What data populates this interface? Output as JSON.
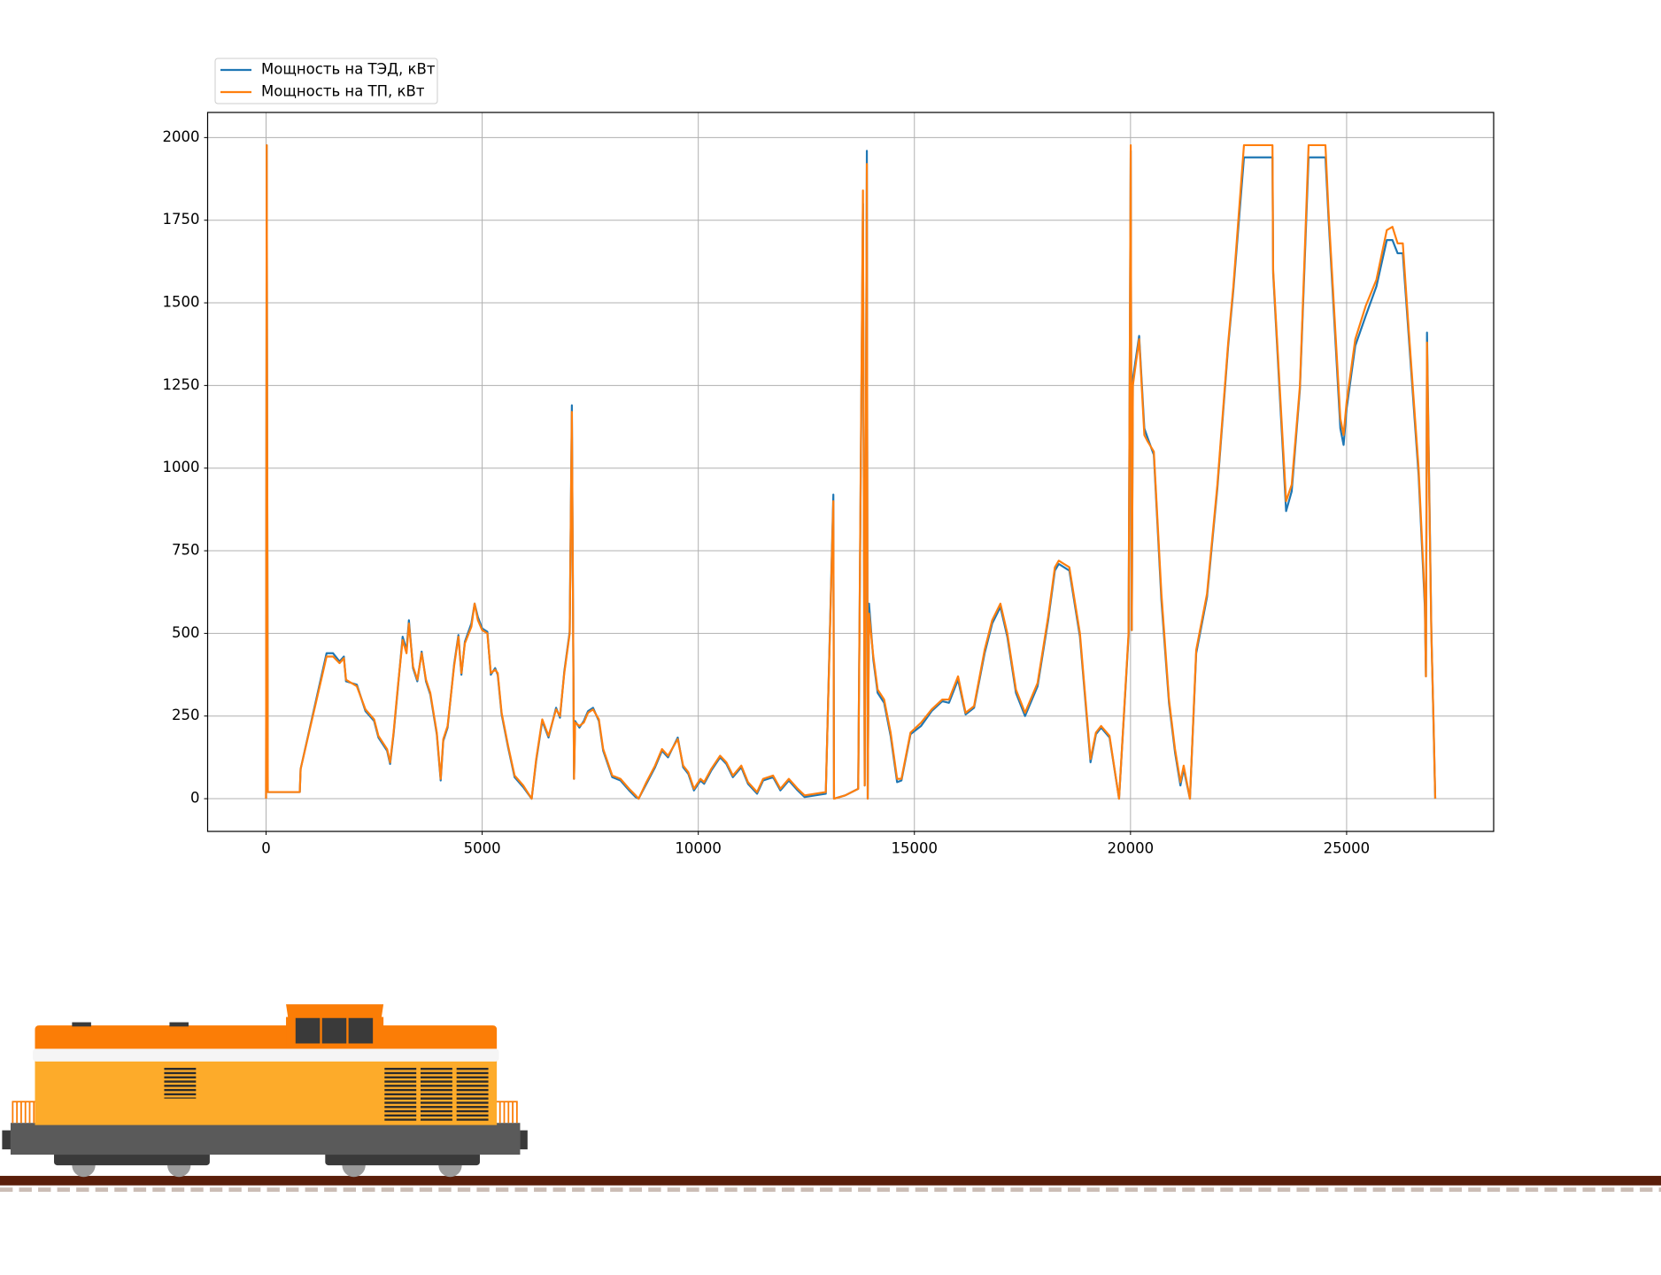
{
  "chart_data": {
    "type": "line",
    "x": [
      0,
      15,
      40,
      780,
      800,
      1400,
      1550,
      1700,
      1800,
      1850,
      2100,
      2300,
      2500,
      2600,
      2800,
      2870,
      2950,
      3050,
      3160,
      3250,
      3305,
      3400,
      3500,
      3600,
      3700,
      3800,
      3950,
      4040,
      4100,
      4200,
      4350,
      4450,
      4520,
      4600,
      4750,
      4825,
      4900,
      5000,
      5120,
      5200,
      5300,
      5360,
      5450,
      5600,
      5750,
      5950,
      6145,
      6250,
      6390,
      6535,
      6710,
      6800,
      6900,
      7025,
      7075,
      7125,
      7150,
      7250,
      7350,
      7450,
      7565,
      7700,
      7800,
      8010,
      8200,
      8400,
      8550,
      8620,
      8800,
      9000,
      9160,
      9300,
      9525,
      9650,
      9770,
      9900,
      10050,
      10135,
      10300,
      10505,
      10650,
      10800,
      10995,
      11150,
      11360,
      11500,
      11730,
      11900,
      12095,
      12300,
      12460,
      12950,
      13125,
      13140,
      13400,
      13700,
      13810,
      13850,
      13900,
      13920,
      13950,
      14050,
      14150,
      14300,
      14450,
      14600,
      14700,
      14910,
      15155,
      15400,
      15645,
      15800,
      16010,
      16185,
      16380,
      16625,
      16800,
      16990,
      17150,
      17350,
      17560,
      17850,
      18095,
      18250,
      18340,
      18585,
      18830,
      19075,
      19200,
      19320,
      19515,
      19735,
      19955,
      20005,
      20030,
      20055,
      20200,
      20320,
      20400,
      20540,
      20715,
      20890,
      21030,
      21155,
      21230,
      21375,
      21520,
      21770,
      22010,
      22260,
      22380,
      22625,
      23285,
      23300,
      23600,
      23730,
      23920,
      24120,
      24510,
      24580,
      24855,
      24930,
      25000,
      25200,
      25440,
      25690,
      25930,
      26060,
      26180,
      26300,
      26420,
      26665,
      26810,
      26835,
      26860,
      26960,
      27010,
      27050
    ],
    "series": [
      {
        "name": "Мощность на ТЭД, кВт",
        "color": "#1f77b4",
        "values": [
          0,
          1977,
          20,
          20,
          90,
          440,
          440,
          415,
          430,
          355,
          345,
          265,
          235,
          185,
          145,
          105,
          195,
          335,
          490,
          450,
          540,
          395,
          355,
          445,
          355,
          315,
          195,
          55,
          175,
          215,
          405,
          495,
          375,
          475,
          530,
          590,
          550,
          515,
          505,
          375,
          395,
          375,
          255,
          155,
          65,
          35,
          0,
          115,
          235,
          185,
          275,
          245,
          385,
          505,
          1190,
          60,
          235,
          215,
          235,
          265,
          275,
          235,
          145,
          65,
          55,
          25,
          5,
          0,
          45,
          95,
          145,
          125,
          185,
          95,
          75,
          25,
          55,
          45,
          85,
          125,
          105,
          65,
          95,
          45,
          15,
          55,
          65,
          25,
          55,
          25,
          5,
          15,
          920,
          0,
          10,
          30,
          1800,
          40,
          1960,
          0,
          590,
          420,
          320,
          290,
          190,
          50,
          55,
          195,
          220,
          265,
          295,
          290,
          360,
          255,
          275,
          440,
          530,
          580,
          490,
          320,
          250,
          340,
          540,
          690,
          710,
          690,
          490,
          110,
          195,
          215,
          185,
          0,
          490,
          1960,
          510,
          1270,
          1400,
          1120,
          1090,
          1040,
          600,
          290,
          140,
          40,
          90,
          0,
          440,
          610,
          940,
          1370,
          1540,
          1940,
          1940,
          1590,
          870,
          930,
          1240,
          1940,
          1940,
          1760,
          1120,
          1070,
          1180,
          1370,
          1460,
          1550,
          1690,
          1690,
          1650,
          1650,
          1430,
          980,
          580,
          370,
          1410,
          510,
          230,
          0
        ]
      },
      {
        "name": "Мощность на ТП, кВт",
        "color": "#ff7f0e",
        "values": [
          0,
          1977,
          20,
          20,
          90,
          430,
          430,
          410,
          425,
          360,
          340,
          270,
          240,
          190,
          150,
          110,
          200,
          340,
          480,
          440,
          530,
          400,
          360,
          440,
          360,
          320,
          200,
          60,
          180,
          220,
          400,
          490,
          380,
          470,
          520,
          590,
          540,
          510,
          500,
          380,
          390,
          380,
          260,
          160,
          70,
          40,
          0,
          120,
          240,
          190,
          270,
          250,
          380,
          500,
          1170,
          60,
          230,
          220,
          230,
          260,
          270,
          240,
          150,
          70,
          60,
          30,
          10,
          0,
          50,
          100,
          150,
          130,
          180,
          100,
          80,
          30,
          60,
          50,
          90,
          130,
          110,
          70,
          100,
          50,
          20,
          60,
          70,
          30,
          60,
          30,
          10,
          20,
          900,
          0,
          10,
          30,
          1840,
          40,
          1920,
          0,
          560,
          430,
          330,
          300,
          200,
          60,
          60,
          200,
          230,
          270,
          300,
          300,
          370,
          260,
          280,
          450,
          540,
          590,
          500,
          330,
          260,
          350,
          550,
          700,
          720,
          700,
          500,
          120,
          200,
          220,
          190,
          0,
          500,
          1977,
          510,
          1250,
          1390,
          1100,
          1080,
          1050,
          620,
          300,
          150,
          50,
          100,
          0,
          450,
          620,
          950,
          1380,
          1550,
          1977,
          1977,
          1600,
          900,
          950,
          1250,
          1977,
          1977,
          1780,
          1150,
          1100,
          1200,
          1390,
          1490,
          1570,
          1720,
          1730,
          1680,
          1680,
          1450,
          1000,
          600,
          370,
          1380,
          500,
          240,
          0
        ]
      }
    ],
    "xlim": [
      -1352,
      28402
    ],
    "ylim": [
      -99,
      2076
    ],
    "xticks": [
      0,
      5000,
      10000,
      15000,
      20000,
      25000
    ],
    "yticks": [
      0,
      250,
      500,
      750,
      1000,
      1250,
      1500,
      1750,
      2000
    ],
    "grid": true,
    "legend": "upper left"
  }
}
